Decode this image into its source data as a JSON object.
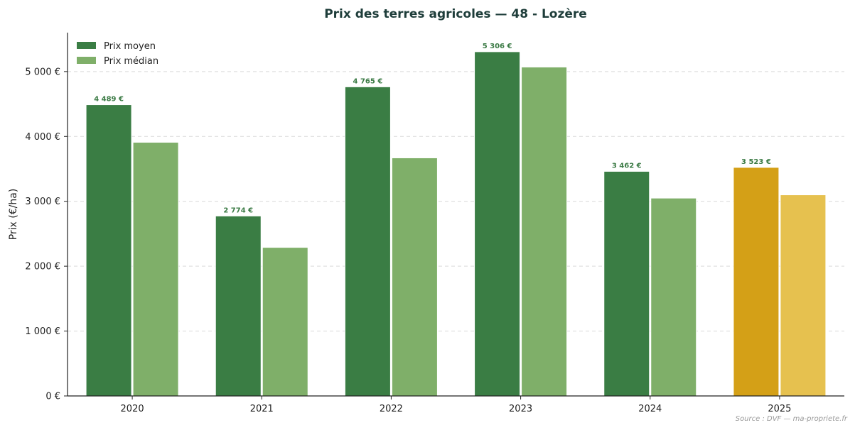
{
  "chart_data": {
    "type": "bar",
    "title": "Prix des terres agricoles — 48 - Lozère",
    "ylabel": "Prix (€/ha)",
    "xlabel": "",
    "categories": [
      "2020",
      "2021",
      "2022",
      "2023",
      "2024",
      "2025"
    ],
    "ylim": [
      0,
      5600
    ],
    "yticks": [
      0,
      1000,
      2000,
      3000,
      4000,
      5000
    ],
    "ytick_labels": [
      "0 €",
      "1 000 €",
      "2 000 €",
      "3 000 €",
      "4 000 €",
      "5 000 €"
    ],
    "grid": true,
    "legend_position": "top-left",
    "series": [
      {
        "name": "Prix moyen",
        "values": [
          4489,
          2774,
          4765,
          5306,
          3462,
          3523
        ],
        "data_labels": [
          "4 489 €",
          "2 774 €",
          "4 765 €",
          "5 306 €",
          "3 462 €",
          "3 523 €"
        ],
        "color": "#3a7d44",
        "highlight_color": "#d4a017"
      },
      {
        "name": "Prix médian",
        "values": [
          3910,
          2290,
          3670,
          5070,
          3050,
          3100
        ],
        "color": "#7faf69",
        "highlight_color": "#e6c14f"
      }
    ],
    "highlight_category": "2025",
    "source": "Source : DVF — ma-propriete.fr"
  }
}
